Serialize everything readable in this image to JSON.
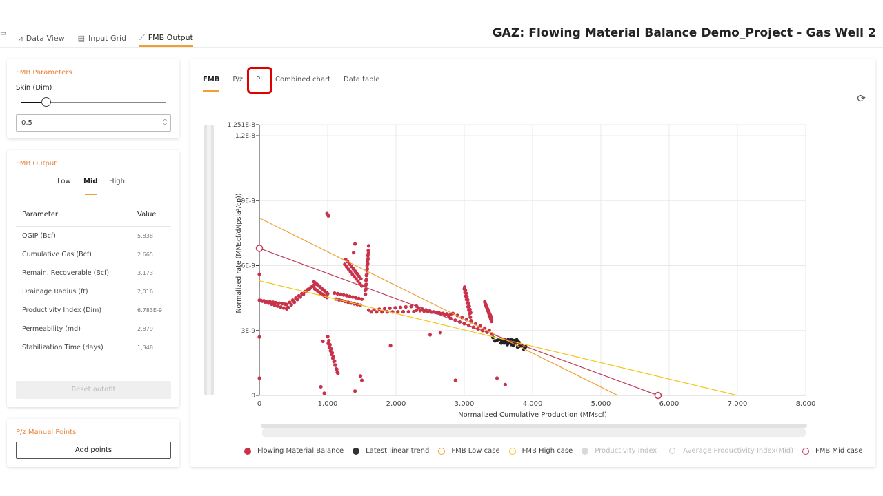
{
  "nav": {
    "items": [
      {
        "label": "Data View",
        "icon": "line-chart-icon"
      },
      {
        "label": "Input Grid",
        "icon": "grid-icon"
      },
      {
        "label": "FMB Output",
        "icon": "trend-icon",
        "active": true
      }
    ]
  },
  "page_title": "GAZ: Flowing Material Balance Demo_Project - Gas Well 2",
  "fmb_parameters": {
    "title": "FMB Parameters",
    "skin_label": "Skin (Dim)",
    "skin_value": "0.5",
    "skin_slider_fraction": 0.18
  },
  "fmb_output": {
    "title": "FMB Output",
    "cases": [
      "Low",
      "Mid",
      "High"
    ],
    "active_case": "Mid",
    "columns": [
      "Parameter",
      "Value"
    ],
    "rows": [
      {
        "param": "OGIP (Bcf)",
        "value": "5.838"
      },
      {
        "param": "Cumulative Gas (Bcf)",
        "value": "2.665"
      },
      {
        "param": "Remain. Recoverable (Bcf)",
        "value": "3.173"
      },
      {
        "param": "Drainage Radius (ft)",
        "value": "2,016"
      },
      {
        "param": "Productivity Index (Dim)",
        "value": "6.783E-9"
      },
      {
        "param": "Permeability (md)",
        "value": "2.879"
      },
      {
        "param": "Stabilization Time (days)",
        "value": "1,348"
      }
    ],
    "reset_label": "Reset autofit"
  },
  "pz_manual": {
    "title": "P/z Manual Points",
    "add_label": "Add points"
  },
  "chart_tabs": [
    "FMB",
    "P/z",
    "PI",
    "Combined chart",
    "Data table"
  ],
  "active_chart_tab": "FMB",
  "colors": {
    "accent": "#f0a030",
    "fmb_points": "#c8324a",
    "latest_trend": "#222222",
    "low_case": "#f0a030",
    "high_case": "#f5c518",
    "mid_case": "#c23b58",
    "highlight": "#e00000"
  },
  "chart_data": {
    "type": "scatter",
    "xlabel": "Normalized Cumulative Production (MMscf)",
    "ylabel": "Normalized rate (MMscf/d/(psia²/cp))",
    "xlim": [
      0,
      8000
    ],
    "ylim": [
      0,
      1.251e-08
    ],
    "x_ticks": [
      "0",
      "1,000",
      "2,000",
      "3,000",
      "4,000",
      "5,000",
      "6,000",
      "7,000",
      "8,000"
    ],
    "y_ticks": [
      {
        "v": 0,
        "label": "0"
      },
      {
        "v": 3e-09,
        "label": "3E-9"
      },
      {
        "v": 6e-09,
        "label": "6E-9"
      },
      {
        "v": 9e-09,
        "label": "9E-9"
      },
      {
        "v": 1.2e-08,
        "label": "1.2E-8"
      },
      {
        "v": 1.251e-08,
        "label": "1.251E-8"
      }
    ],
    "lines": [
      {
        "name": "FMB Low case",
        "color": "#f0a030",
        "x": [
          0,
          5250
        ],
        "y": [
          8.2e-09,
          0
        ]
      },
      {
        "name": "FMB High case",
        "color": "#f5c518",
        "x": [
          0,
          7000
        ],
        "y": [
          5.3e-09,
          0
        ]
      },
      {
        "name": "FMB Mid case",
        "color": "#c23b58",
        "x": [
          0,
          5838
        ],
        "y": [
          6.8e-09,
          0
        ]
      }
    ],
    "endpoints": [
      {
        "x": 0,
        "y": 6.8e-09
      },
      {
        "x": 5838,
        "y": 0
      }
    ],
    "fmb_segments": [
      {
        "x0": 0,
        "y0": 4.4e-09,
        "x1": 400,
        "y1": 4.1e-09
      },
      {
        "x0": 400,
        "y0": 4.1e-09,
        "x1": 800,
        "y1": 5.1e-09
      },
      {
        "x0": 800,
        "y0": 5.1e-09,
        "x1": 1000,
        "y1": 4.6e-09
      },
      {
        "x0": 1100,
        "y0": 4.6e-09,
        "x1": 1500,
        "y1": 4.3e-09
      },
      {
        "x0": 1600,
        "y0": 3.9e-09,
        "x1": 2300,
        "y1": 4e-09
      },
      {
        "x0": 2300,
        "y0": 4e-09,
        "x1": 2800,
        "y1": 3.7e-09
      },
      {
        "x0": 2800,
        "y0": 3.7e-09,
        "x1": 3400,
        "y1": 2.9e-09
      },
      {
        "x0": 1250,
        "y0": 6.2e-09,
        "x1": 1500,
        "y1": 5.2e-09
      },
      {
        "x0": 3000,
        "y0": 5e-09,
        "x1": 3100,
        "y1": 3.6e-09
      },
      {
        "x0": 3300,
        "y0": 4.3e-09,
        "x1": 3400,
        "y1": 3.5e-09
      },
      {
        "x0": 1000,
        "y0": 2.6e-09,
        "x1": 1150,
        "y1": 1e-09
      },
      {
        "x0": 1550,
        "y0": 4.7e-09,
        "x1": 1600,
        "y1": 6.8e-09
      }
    ],
    "fmb_points": [
      {
        "x": 990,
        "y": 8.4e-09
      },
      {
        "x": 1010,
        "y": 8.3e-09
      },
      {
        "x": 0,
        "y": 5.6e-09
      },
      {
        "x": 0,
        "y": 2.7e-09
      },
      {
        "x": 0,
        "y": 8e-10
      },
      {
        "x": 1400,
        "y": 7e-09
      },
      {
        "x": 1380,
        "y": 6.6e-09
      },
      {
        "x": 930,
        "y": 2.5e-09
      },
      {
        "x": 900,
        "y": 4e-10
      },
      {
        "x": 950,
        "y": 1e-10
      },
      {
        "x": 1480,
        "y": 9e-10
      },
      {
        "x": 1500,
        "y": 7e-10
      },
      {
        "x": 1400,
        "y": 2e-10
      },
      {
        "x": 1920,
        "y": 2.3e-09
      },
      {
        "x": 2870,
        "y": 7e-10
      },
      {
        "x": 3480,
        "y": 8e-10
      },
      {
        "x": 3600,
        "y": 5e-10
      },
      {
        "x": 2500,
        "y": 2.8e-09
      },
      {
        "x": 2650,
        "y": 2.9e-09
      }
    ],
    "latest_trend": [
      {
        "x0": 3420,
        "y0": 2.6e-09,
        "x1": 3900,
        "y1": 2.2e-09
      },
      {
        "x0": 3550,
        "y0": 2.5e-09,
        "x1": 3800,
        "y1": 2.5e-09
      }
    ],
    "legend": [
      {
        "label": "Flowing Material Balance",
        "kind": "dot",
        "color": "#c8324a"
      },
      {
        "label": "Latest linear trend",
        "kind": "dot",
        "color": "#333333"
      },
      {
        "label": "FMB Low case",
        "kind": "ring",
        "color": "#f0a030"
      },
      {
        "label": "FMB High case",
        "kind": "ring",
        "color": "#f5c518"
      },
      {
        "label": "Productivity Index",
        "kind": "dot",
        "color": "#d8d8d8",
        "muted": true
      },
      {
        "label": "Average Productivity Index(Mid)",
        "kind": "line-ring",
        "color": "#cccccc",
        "muted": true
      },
      {
        "label": "FMB Mid case",
        "kind": "ring",
        "color": "#c23b58"
      }
    ]
  }
}
